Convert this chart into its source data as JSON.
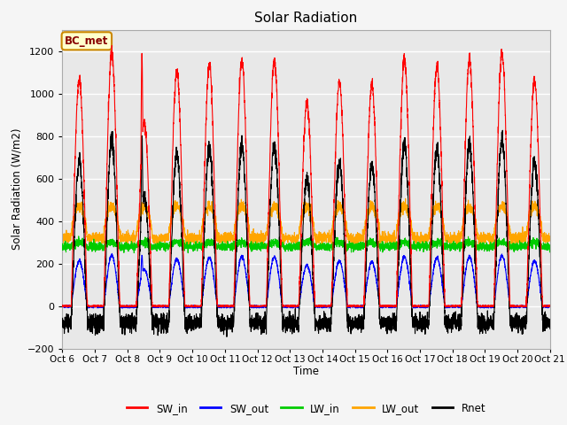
{
  "title": "Solar Radiation",
  "ylabel": "Solar Radiation (W/m2)",
  "xlabel": "Time",
  "ylim": [
    -200,
    1300
  ],
  "yticks": [
    -200,
    0,
    200,
    400,
    600,
    800,
    1000,
    1200
  ],
  "start_day": 6,
  "end_day": 21,
  "n_days": 15,
  "points_per_day": 288,
  "colors": {
    "SW_in": "#ff0000",
    "SW_out": "#0000ff",
    "LW_in": "#00cc00",
    "LW_out": "#ffa500",
    "Rnet": "#000000"
  },
  "background_color": "#f5f5f5",
  "plot_bg_color": "#e8e8e8",
  "annotation_text": "BC_met",
  "annotation_bg": "#ffffcc",
  "annotation_border": "#cc8800",
  "annotation_text_color": "#880000",
  "linewidth": 0.8,
  "grid_color": "#ffffff",
  "grid_linewidth": 1.0,
  "figsize": [
    6.4,
    4.8
  ],
  "dpi": 100
}
